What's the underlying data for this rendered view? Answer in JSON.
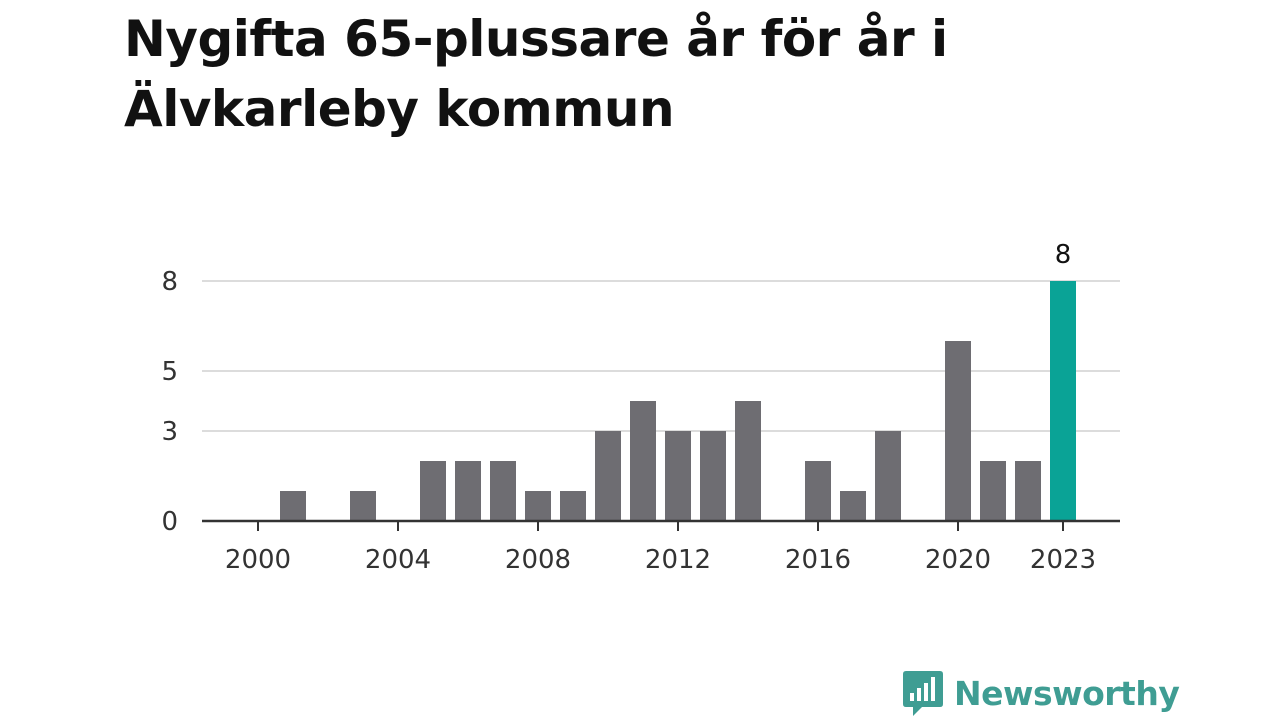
{
  "title": "Nygifta 65-plussare år för år i Älvkarleby kommun",
  "brand": {
    "name": "Newsworthy",
    "color": "#3f9d93"
  },
  "colors": {
    "bar": "#6e6d72",
    "highlight": "#0aa396",
    "grid": "#dcdcdc",
    "axis": "#333333"
  },
  "chart_data": {
    "type": "bar",
    "title": "Nygifta 65-plussare år för år i Älvkarleby kommun",
    "xlabel": "",
    "ylabel": "",
    "categories": [
      2000,
      2001,
      2002,
      2003,
      2004,
      2005,
      2006,
      2007,
      2008,
      2009,
      2010,
      2011,
      2012,
      2013,
      2014,
      2015,
      2016,
      2017,
      2018,
      2019,
      2020,
      2021,
      2022,
      2023
    ],
    "values": [
      0,
      1,
      0,
      1,
      0,
      2,
      2,
      2,
      1,
      1,
      3,
      4,
      3,
      3,
      4,
      0,
      2,
      1,
      3,
      0,
      6,
      2,
      2,
      8
    ],
    "highlight_category": 2023,
    "highlight_label": "8",
    "x_tick_labels": [
      "2000",
      "2004",
      "2008",
      "2012",
      "2016",
      "2020",
      "2023"
    ],
    "y_tick_values": [
      0,
      3,
      5,
      8
    ],
    "y_tick_labels": [
      "0",
      "3",
      "5",
      "8"
    ],
    "ylim": [
      0,
      8.5
    ],
    "grid": true
  }
}
